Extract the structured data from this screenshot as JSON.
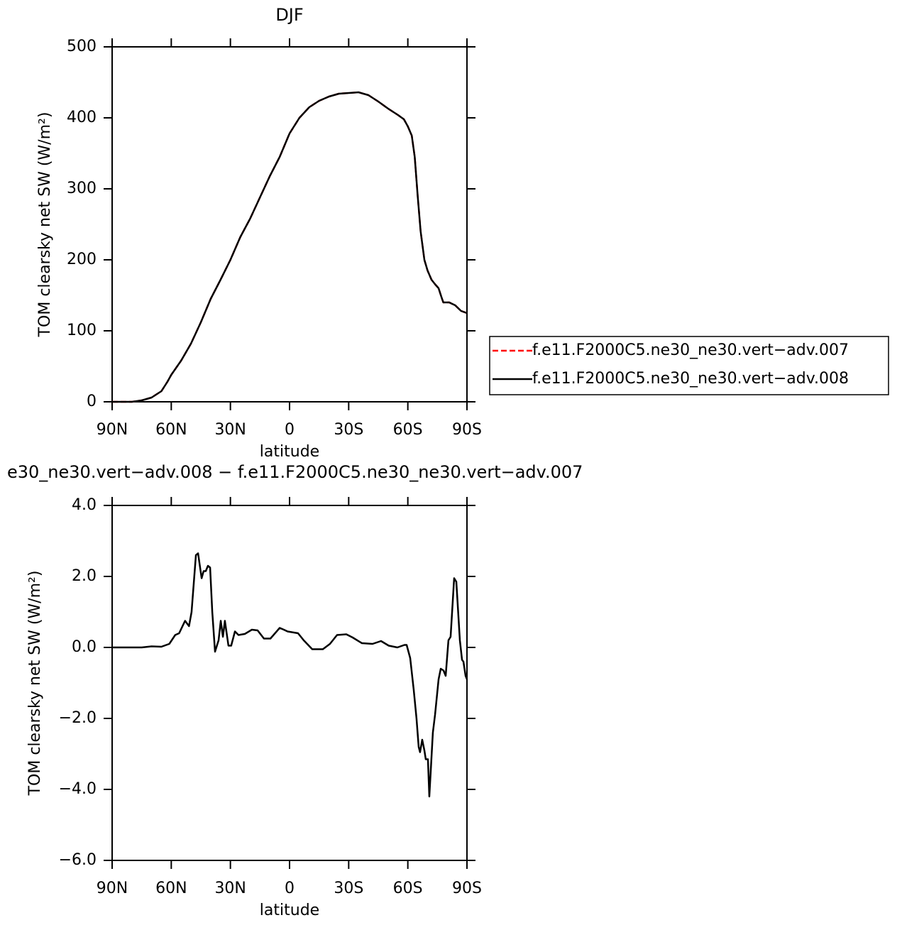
{
  "chart_data": [
    {
      "type": "line",
      "title": "DJF",
      "xlabel": "latitude",
      "ylabel": "TOM clearsky net SW (W/m²)",
      "xlim": [
        90,
        -90
      ],
      "xticks": [
        {
          "value": 90,
          "label": "90N"
        },
        {
          "value": 60,
          "label": "60N"
        },
        {
          "value": 30,
          "label": "30N"
        },
        0,
        {
          "value": -30,
          "label": "30S"
        },
        {
          "value": -60,
          "label": "60S"
        },
        {
          "value": -90,
          "label": "90S"
        }
      ],
      "ylim": [
        0,
        500
      ],
      "yticks": [
        0,
        100,
        200,
        300,
        400,
        500
      ],
      "legend": "right",
      "x": [
        90,
        80,
        75,
        70,
        65,
        62,
        60,
        55,
        50,
        45,
        40,
        35,
        30,
        25,
        20,
        15,
        10,
        5,
        0,
        -5,
        -10,
        -15,
        -20,
        -25,
        -30,
        -35,
        -40,
        -45,
        -50,
        -55,
        -58,
        -60,
        -62,
        -63.5,
        -65,
        -66.5,
        -68.4,
        -70,
        -72,
        -74,
        -75.6,
        -77,
        -78,
        -81,
        -84,
        -87,
        -90
      ],
      "series": [
        {
          "name": "f.e11.F2000C5.ne30_ne30.vert−adv.007",
          "color": "#ff0000",
          "dashed": true,
          "values": [
            0,
            0,
            2,
            6,
            15,
            28,
            38,
            58,
            82,
            112,
            145,
            172,
            200,
            232,
            258,
            288,
            318,
            345,
            378,
            400,
            415,
            424,
            430,
            434,
            435,
            436,
            432,
            423,
            413,
            404,
            398,
            388,
            375,
            345,
            290,
            240,
            200,
            185,
            172,
            165,
            160,
            148,
            140,
            140,
            136,
            128,
            125
          ]
        },
        {
          "name": "f.e11.F2000C5.ne30_ne30.vert−adv.008",
          "color": "#000000",
          "dashed": false,
          "values": [
            0,
            0,
            2,
            6,
            15,
            28,
            38,
            58,
            82,
            112,
            145,
            172,
            200,
            232,
            258,
            288,
            318,
            345,
            378,
            400,
            415,
            424,
            430,
            434,
            435,
            436,
            432,
            423,
            413,
            404,
            398,
            388,
            375,
            345,
            290,
            240,
            200,
            185,
            172,
            165,
            160,
            148,
            140,
            140,
            136,
            128,
            125
          ]
        }
      ]
    },
    {
      "type": "line",
      "title": "e30_ne30.vert−adv.008 − f.e11.F2000C5.ne30_ne30.vert−adv.007",
      "xlabel": "latitude",
      "ylabel": "TOM clearsky net SW (W/m²)",
      "xlim": [
        90,
        -90
      ],
      "xticks": [
        {
          "value": 90,
          "label": "90N"
        },
        {
          "value": 60,
          "label": "60N"
        },
        {
          "value": 30,
          "label": "30N"
        },
        0,
        {
          "value": -30,
          "label": "30S"
        },
        {
          "value": -60,
          "label": "60S"
        },
        {
          "value": -90,
          "label": "90S"
        }
      ],
      "ylim": [
        -6,
        4
      ],
      "yticks": [
        {
          "value": -6,
          "label": "−6.0"
        },
        {
          "value": -4,
          "label": "−4.0"
        },
        {
          "value": -2,
          "label": "−2.0"
        },
        {
          "value": 0,
          "label": "0.0"
        },
        {
          "value": 2,
          "label": "2.0"
        },
        {
          "value": 4,
          "label": "4.0"
        }
      ],
      "x": [
        90,
        75,
        70,
        65,
        61,
        58,
        56,
        53,
        51,
        49.7,
        47.5,
        46.4,
        44.6,
        43.6,
        42.5,
        41.4,
        40.3,
        39.2,
        37.8,
        36,
        34.9,
        33.8,
        32.8,
        31,
        29.6,
        27.7,
        25.9,
        22.7,
        19.1,
        16.2,
        13,
        9.7,
        5,
        2.9,
        1,
        -4.3,
        -7.2,
        -11.5,
        -16.9,
        -20.5,
        -24.1,
        -28.8,
        -32,
        -36.7,
        -42.1,
        -46.4,
        -50.3,
        -54.7,
        -58.3,
        -59.4,
        -61.2,
        -63,
        -64.4,
        -65.5,
        -66.2,
        -67.3,
        -68.4,
        -69.1,
        -70.2,
        -70.9,
        -72.7,
        -73.8,
        -75.6,
        -76.7,
        -78.1,
        -79.2,
        -80.6,
        -81.7,
        -83.5,
        -84.6,
        -86.4,
        -87.5,
        -88.2,
        -89.3,
        -90
      ],
      "series": [
        {
          "color": "#000000",
          "dashed": false,
          "values": [
            0,
            0,
            0.03,
            0.02,
            0.1,
            0.35,
            0.4,
            0.75,
            0.6,
            1.0,
            2.6,
            2.65,
            1.95,
            2.15,
            2.15,
            2.3,
            2.25,
            1.0,
            -0.12,
            0.2,
            0.75,
            0.3,
            0.75,
            0.05,
            0.05,
            0.45,
            0.35,
            0.38,
            0.5,
            0.48,
            0.25,
            0.25,
            0.55,
            0.5,
            0.45,
            0.4,
            0.2,
            -0.05,
            -0.05,
            0.1,
            0.35,
            0.37,
            0.28,
            0.12,
            0.1,
            0.18,
            0.05,
            0,
            0.07,
            0.07,
            -0.3,
            -1.2,
            -2.0,
            -2.8,
            -2.95,
            -2.6,
            -2.9,
            -3.15,
            -3.15,
            -4.2,
            -2.4,
            -1.9,
            -0.9,
            -0.6,
            -0.65,
            -0.8,
            0.2,
            0.3,
            1.95,
            1.85,
            0.2,
            -0.35,
            -0.4,
            -0.8,
            -0.9
          ]
        }
      ]
    }
  ]
}
